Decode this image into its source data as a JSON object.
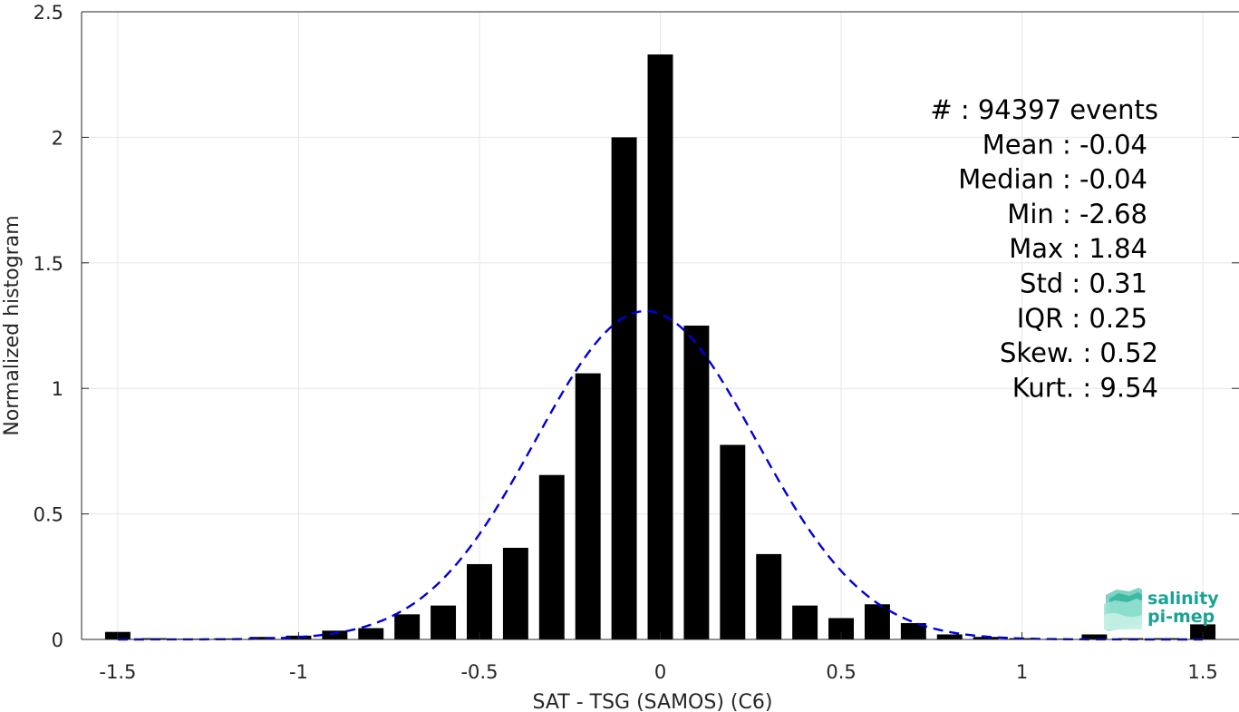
{
  "chart_data": {
    "type": "bar",
    "xlabel": "SAT - TSG (SAMOS) (C6)",
    "ylabel": "Normalized histogram",
    "xlim": [
      -1.6,
      1.6
    ],
    "ylim": [
      0,
      2.5
    ],
    "xticks": [
      -1.5,
      -1,
      -0.5,
      0,
      0.5,
      1,
      1.5
    ],
    "xtick_labels": [
      "-1.5",
      "-1",
      "-0.5",
      "0",
      "0.5",
      "1",
      "1.5"
    ],
    "yticks": [
      0,
      0.5,
      1,
      1.5,
      2,
      2.5
    ],
    "ytick_labels": [
      "0",
      "0.5",
      "1",
      "1.5",
      "2",
      "2.5"
    ],
    "grid": true,
    "bar_width": 0.07,
    "bars": [
      {
        "x": -1.5,
        "y": 0.03
      },
      {
        "x": -1.4,
        "y": 0.005
      },
      {
        "x": -1.3,
        "y": 0.003
      },
      {
        "x": -1.2,
        "y": 0.004
      },
      {
        "x": -1.1,
        "y": 0.01
      },
      {
        "x": -1.0,
        "y": 0.015
      },
      {
        "x": -0.9,
        "y": 0.035
      },
      {
        "x": -0.8,
        "y": 0.045
      },
      {
        "x": -0.7,
        "y": 0.1
      },
      {
        "x": -0.6,
        "y": 0.135
      },
      {
        "x": -0.5,
        "y": 0.3
      },
      {
        "x": -0.4,
        "y": 0.365
      },
      {
        "x": -0.3,
        "y": 0.655
      },
      {
        "x": -0.2,
        "y": 1.06
      },
      {
        "x": -0.1,
        "y": 2.0
      },
      {
        "x": 0.0,
        "y": 2.33
      },
      {
        "x": 0.1,
        "y": 1.25
      },
      {
        "x": 0.2,
        "y": 0.775
      },
      {
        "x": 0.3,
        "y": 0.34
      },
      {
        "x": 0.4,
        "y": 0.135
      },
      {
        "x": 0.5,
        "y": 0.085
      },
      {
        "x": 0.6,
        "y": 0.14
      },
      {
        "x": 0.7,
        "y": 0.065
      },
      {
        "x": 0.8,
        "y": 0.02
      },
      {
        "x": 0.9,
        "y": 0.01
      },
      {
        "x": 1.0,
        "y": 0.005
      },
      {
        "x": 1.1,
        "y": 0.003
      },
      {
        "x": 1.2,
        "y": 0.02
      },
      {
        "x": 1.3,
        "y": 0.005
      },
      {
        "x": 1.4,
        "y": 0.005
      },
      {
        "x": 1.5,
        "y": 0.06
      }
    ],
    "fit_curve": {
      "kind": "gaussian",
      "mean": -0.04,
      "std": 0.305,
      "x_range": [
        -1.5,
        1.5
      ],
      "color": "#0000dd",
      "style": "dashed"
    },
    "bar_color": "#000000"
  },
  "stats": [
    {
      "text": "#  : 94397 events",
      "x_end": 1278
    },
    {
      "text": "Mean : -0.04",
      "x_end": 1266
    },
    {
      "text": "Median : -0.04",
      "x_end": 1266
    },
    {
      "text": "Min : -2.68",
      "x_end": 1266
    },
    {
      "text": "Max : 1.84",
      "x_end": 1266
    },
    {
      "text": "Std : 0.31",
      "x_end": 1266
    },
    {
      "text": "IQR : 0.25",
      "x_end": 1266
    },
    {
      "text": "Skew. : 0.52",
      "x_end": 1278
    },
    {
      "text": "Kurt. : 9.54",
      "x_end": 1278
    }
  ],
  "logo": {
    "line1": "salinity",
    "line2": "pi-mep",
    "color": "#1aa394"
  }
}
